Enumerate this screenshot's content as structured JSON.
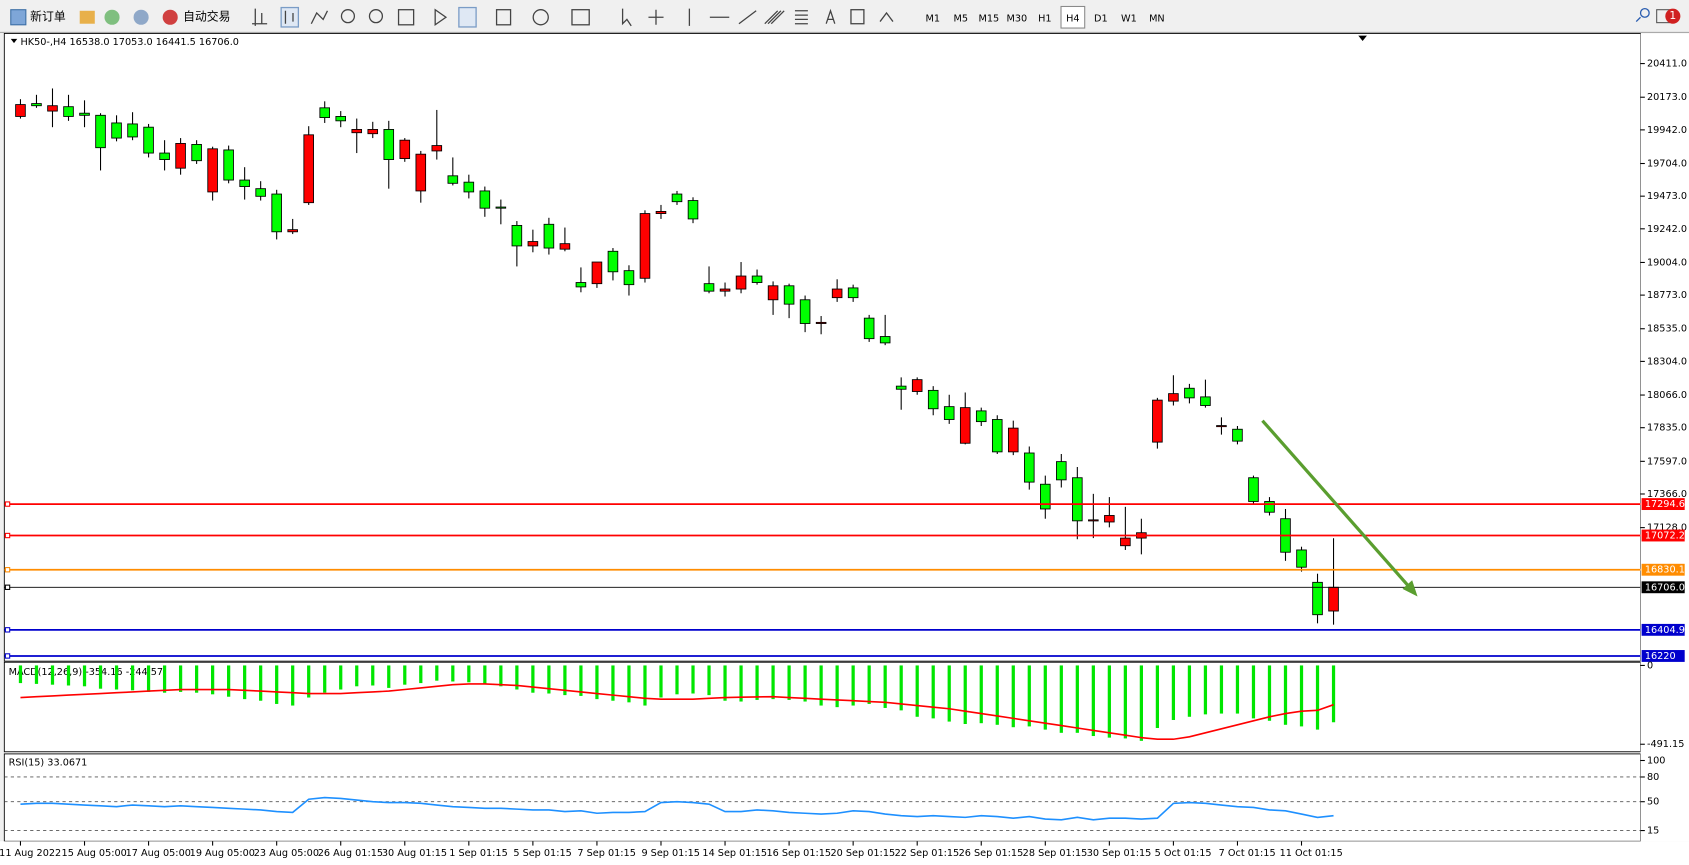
{
  "toolbar": {
    "new_order": "新订单",
    "auto_trading": "自动交易",
    "timeframes": [
      "M1",
      "M5",
      "M15",
      "M30",
      "H1",
      "H4",
      "D1",
      "W1",
      "MN"
    ],
    "active": "H4",
    "notifications": "1"
  },
  "chart_data": [
    {
      "type": "candlestick",
      "title": "HK50-,H4",
      "ohlc_labels": [
        "16538.0",
        "17053.0",
        "16441.5",
        "16706.0"
      ],
      "up_color": "#ff0000",
      "down_color": "#00ff00",
      "categories": [
        "11 Aug 2022",
        null,
        null,
        null,
        "15 Aug 05:00",
        null,
        null,
        null,
        "17 Aug 05:00",
        null,
        null,
        null,
        "19 Aug 05:00",
        null,
        null,
        null,
        "23 Aug 05:00",
        null,
        null,
        null,
        "26 Aug 01:15",
        null,
        null,
        null,
        "30 Aug 01:15",
        null,
        null,
        null,
        "1 Sep 01:15",
        null,
        null,
        null,
        "5 Sep 01:15",
        null,
        null,
        null,
        "7 Sep 01:15",
        null,
        null,
        null,
        "9 Sep 01:15",
        null,
        null,
        null,
        "14 Sep 01:15",
        null,
        null,
        null,
        "16 Sep 01:15",
        null,
        null,
        null,
        "20 Sep 01:15",
        null,
        null,
        null,
        "22 Sep 01:15",
        null,
        null,
        null,
        "26 Sep 01:15",
        null,
        null,
        null,
        "28 Sep 01:15",
        null,
        null,
        null,
        "30 Sep 01:15",
        null,
        null,
        null,
        "5 Oct 01:15",
        null,
        null,
        null,
        "7 Oct 01:15",
        null,
        null,
        null,
        "11 Oct 01:15",
        null,
        null
      ],
      "open": [
        20037,
        20128,
        20075,
        20106,
        20060,
        20045,
        19991,
        19984,
        19961,
        19778,
        19671,
        19839,
        19503,
        19800,
        19587,
        19526,
        19488,
        19221,
        19427,
        20098,
        20037,
        19922,
        19915,
        19945,
        19739,
        19510,
        19793,
        19617,
        19572,
        19510,
        19396,
        19266,
        19121,
        19274,
        19098,
        18862,
        18854,
        19083,
        18946,
        18892,
        19350,
        19488,
        19442,
        18854,
        18801,
        18816,
        18908,
        18740,
        18839,
        18740,
        18572,
        18755,
        18824,
        18610,
        18480,
        18129,
        18091,
        18099,
        17984,
        17725,
        17954,
        17893,
        17664,
        17656,
        17435,
        17595,
        17481,
        17176,
        17168,
        17000,
        17054,
        17733,
        18023,
        18114,
        18053,
        17847,
        17824,
        17481,
        17313,
        17191,
        16970,
        16741,
        16538
      ],
      "high": [
        20159,
        20190,
        20235,
        20190,
        20151,
        20060,
        20045,
        20067,
        19984,
        19869,
        19884,
        19869,
        19823,
        19831,
        19678,
        19579,
        19518,
        19312,
        19968,
        20144,
        20075,
        20022,
        19999,
        20006,
        19884,
        19793,
        20083,
        19747,
        19625,
        19541,
        19449,
        19297,
        19236,
        19320,
        19251,
        18969,
        19007,
        19106,
        18984,
        19373,
        19411,
        19510,
        19465,
        18976,
        18862,
        19007,
        18954,
        18870,
        18854,
        18770,
        18625,
        18885,
        18847,
        18633,
        18633,
        18191,
        18191,
        18129,
        18068,
        18084,
        17977,
        17923,
        17885,
        17702,
        17496,
        17649,
        17557,
        17367,
        17344,
        17275,
        17191,
        18046,
        18206,
        18145,
        18175,
        17908,
        17847,
        17496,
        17344,
        17260,
        16993,
        16802,
        17053
      ],
      "low": [
        20022,
        20098,
        19961,
        20006,
        19961,
        19655,
        19861,
        19869,
        19747,
        19655,
        19625,
        19701,
        19442,
        19564,
        19449,
        19442,
        19167,
        19205,
        19411,
        19991,
        19961,
        19778,
        19884,
        19526,
        19716,
        19427,
        19732,
        19549,
        19457,
        19327,
        19274,
        18976,
        19076,
        19060,
        19083,
        18793,
        18824,
        18877,
        18770,
        18862,
        19312,
        19411,
        19282,
        18786,
        18763,
        18786,
        18847,
        18633,
        18610,
        18511,
        18496,
        18725,
        18725,
        18442,
        18419,
        17962,
        18068,
        17923,
        17862,
        17717,
        17847,
        17649,
        17641,
        17397,
        17191,
        17412,
        17046,
        17054,
        17130,
        16970,
        16939,
        17687,
        17992,
        18007,
        17977,
        17786,
        17717,
        17298,
        17214,
        16893,
        16817,
        16451,
        16441.5
      ],
      "close": [
        20121,
        20113,
        20113,
        20037,
        20045,
        19816,
        19884,
        19892,
        19778,
        19732,
        19846,
        19724,
        19808,
        19587,
        19541,
        19472,
        19221,
        19236,
        19907,
        20029,
        20006,
        19945,
        19945,
        19732,
        19869,
        19770,
        19831,
        19564,
        19503,
        19388,
        19388,
        19121,
        19152,
        19106,
        19137,
        18831,
        19007,
        18938,
        18847,
        19350,
        19365,
        19434,
        19312,
        18801,
        18816,
        18908,
        18862,
        18839,
        18709,
        18572,
        18580,
        18816,
        18755,
        18465,
        18435,
        18107,
        18175,
        17969,
        17893,
        17977,
        17878,
        17664,
        17832,
        17450,
        17260,
        17466,
        17176,
        17183,
        17214,
        17054,
        17092,
        18030,
        18076,
        18046,
        17992,
        17850,
        17740,
        17313,
        17237,
        16954,
        16848,
        16512,
        16706
      ],
      "ylim": [
        16191,
        20609
      ],
      "yticks": [
        {
          "value": 20411,
          "label": "20411.0"
        },
        {
          "value": 20173,
          "label": "20173.0"
        },
        {
          "value": 19942,
          "label": "19942.0"
        },
        {
          "value": 19704,
          "label": "19704.0"
        },
        {
          "value": 19473,
          "label": "19473.0"
        },
        {
          "value": 19242,
          "label": "19242.0"
        },
        {
          "value": 19004,
          "label": "19004.0"
        },
        {
          "value": 18773,
          "label": "18773.0"
        },
        {
          "value": 18535,
          "label": "18535.0"
        },
        {
          "value": 18304,
          "label": "18304.0"
        },
        {
          "value": 18066,
          "label": "18066.0"
        },
        {
          "value": 17835,
          "label": "17835.0"
        },
        {
          "value": 17597,
          "label": "17597.0"
        },
        {
          "value": 17366,
          "label": "17366.0"
        },
        {
          "value": 17128,
          "label": "17128.0"
        }
      ],
      "levels": [
        {
          "value": 17294.6,
          "color": "#ff0000"
        },
        {
          "value": 17072.2,
          "color": "#ff0000"
        },
        {
          "value": 16830.1,
          "color": "#ff8c00"
        },
        {
          "value": 16706,
          "label": "16706.0",
          "color": "#000000"
        },
        {
          "value": 16404.9,
          "color": "#0000cd"
        },
        {
          "value": 16220,
          "color": "#0000cd"
        }
      ]
    },
    {
      "type": "macd",
      "title": "MACD(12,26,9)",
      "ylim": [
        -538,
        20
      ],
      "yticks": [
        0,
        -491.15
      ],
      "series": [
        {
          "type": "histogram",
          "color": "#00e600",
          "values": [
            -110,
            -115,
            -120,
            -125,
            -130,
            -145,
            -150,
            -155,
            -165,
            -170,
            -165,
            -170,
            -180,
            -195,
            -210,
            -220,
            -240,
            -250,
            -200,
            -170,
            -150,
            -130,
            -125,
            -140,
            -120,
            -110,
            -95,
            -100,
            -105,
            -115,
            -130,
            -150,
            -170,
            -175,
            -185,
            -190,
            -210,
            -220,
            -230,
            -250,
            -200,
            -180,
            -175,
            -185,
            -220,
            -225,
            -215,
            -210,
            -215,
            -225,
            -250,
            -260,
            -250,
            -240,
            -265,
            -280,
            -320,
            -330,
            -350,
            -365,
            -360,
            -370,
            -385,
            -380,
            -400,
            -420,
            -420,
            -440,
            -450,
            -455,
            -470,
            -390,
            -340,
            -320,
            -305,
            -300,
            -300,
            -330,
            -345,
            -370,
            -380,
            -400,
            -354.16
          ]
        },
        {
          "type": "line",
          "color": "#ff0000",
          "values": [
            -200,
            -195,
            -190,
            -185,
            -180,
            -175,
            -170,
            -165,
            -160,
            -155,
            -150,
            -150,
            -150,
            -150,
            -155,
            -160,
            -165,
            -170,
            -175,
            -175,
            -175,
            -170,
            -165,
            -160,
            -150,
            -140,
            -130,
            -120,
            -115,
            -115,
            -120,
            -125,
            -135,
            -145,
            -155,
            -165,
            -175,
            -185,
            -195,
            -205,
            -210,
            -210,
            -210,
            -205,
            -200,
            -198,
            -196,
            -195,
            -200,
            -205,
            -210,
            -215,
            -220,
            -225,
            -230,
            -240,
            -250,
            -260,
            -270,
            -285,
            -300,
            -315,
            -330,
            -345,
            -360,
            -375,
            -390,
            -405,
            -420,
            -435,
            -450,
            -460,
            -460,
            -445,
            -420,
            -395,
            -370,
            -345,
            -320,
            -300,
            -285,
            -280,
            -244.57
          ]
        }
      ]
    },
    {
      "type": "rsi",
      "title": "RSI(15)",
      "ylim": [
        2,
        108
      ],
      "yticks": [
        100,
        80,
        50,
        15
      ],
      "levels": [
        80,
        50,
        15
      ],
      "series": [
        {
          "type": "line",
          "color": "#1e90ff",
          "values": [
            47,
            48,
            48,
            47,
            46,
            45,
            44,
            46,
            45,
            44,
            45,
            44,
            43,
            42,
            41,
            40,
            38,
            37,
            53,
            55,
            54,
            52,
            50,
            49,
            49,
            48,
            46,
            44,
            43,
            42,
            42,
            41,
            40,
            40,
            38,
            39,
            36,
            37,
            37,
            38,
            49,
            50,
            49,
            47,
            38,
            38,
            40,
            39,
            37,
            36,
            35,
            36,
            39,
            38,
            35,
            33,
            32,
            33,
            32,
            31,
            33,
            32,
            30,
            32,
            29,
            28,
            31,
            28,
            30,
            30,
            29,
            30,
            48,
            49,
            48,
            46,
            44,
            43,
            40,
            39,
            35,
            31,
            33.0671
          ]
        }
      ]
    }
  ]
}
